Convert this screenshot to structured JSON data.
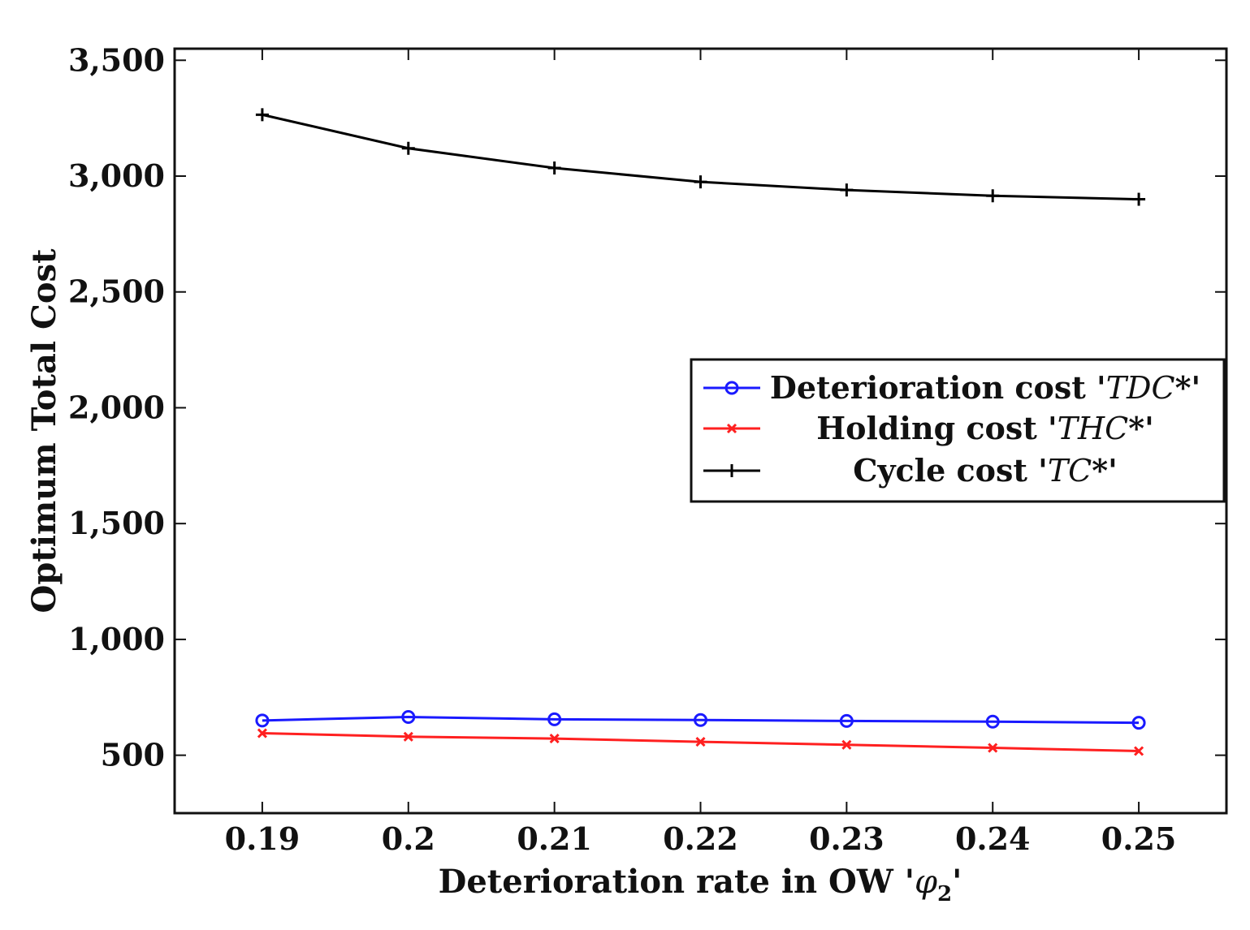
{
  "chart_data": {
    "type": "line",
    "title": "",
    "xlabel": "Deterioration rate in OW '",
    "xlabel_symbol": "φ",
    "xlabel_subscript": "2",
    "xlabel_suffix": "'",
    "ylabel": "Optimum Total Cost",
    "x": [
      0.19,
      0.2,
      0.21,
      0.22,
      0.23,
      0.24,
      0.25
    ],
    "x_tick_labels": [
      "0.19",
      "0.2",
      "0.21",
      "0.22",
      "0.23",
      "0.24",
      "0.25"
    ],
    "xlim": [
      0.184,
      0.256
    ],
    "ylim": [
      250,
      3550
    ],
    "y_ticks": [
      500,
      1000,
      1500,
      2000,
      2500,
      3000,
      3500
    ],
    "y_tick_labels": [
      "500",
      "1,000",
      "1,500",
      "2,000",
      "2,500",
      "3,000",
      "3,500"
    ],
    "grid": false,
    "legend_position": "center-right",
    "series": [
      {
        "name": "Deterioration cost",
        "legend_prefix": "Deterioration cost '",
        "legend_math": "TDC",
        "legend_suffix": "*'",
        "color": "#1a1aff",
        "marker": "circle",
        "values": [
          650,
          665,
          655,
          652,
          648,
          645,
          640
        ]
      },
      {
        "name": "Holding cost",
        "legend_prefix": "Holding cost '",
        "legend_math": "THC",
        "legend_suffix": "*'",
        "color": "#ff2020",
        "marker": "x",
        "values": [
          595,
          580,
          572,
          558,
          545,
          532,
          518
        ]
      },
      {
        "name": "Cycle cost",
        "legend_prefix": "Cycle cost '",
        "legend_math": "TC",
        "legend_suffix": "*'",
        "color": "#000000",
        "marker": "plus",
        "values": [
          3265,
          3120,
          3035,
          2975,
          2940,
          2915,
          2900
        ]
      }
    ]
  }
}
